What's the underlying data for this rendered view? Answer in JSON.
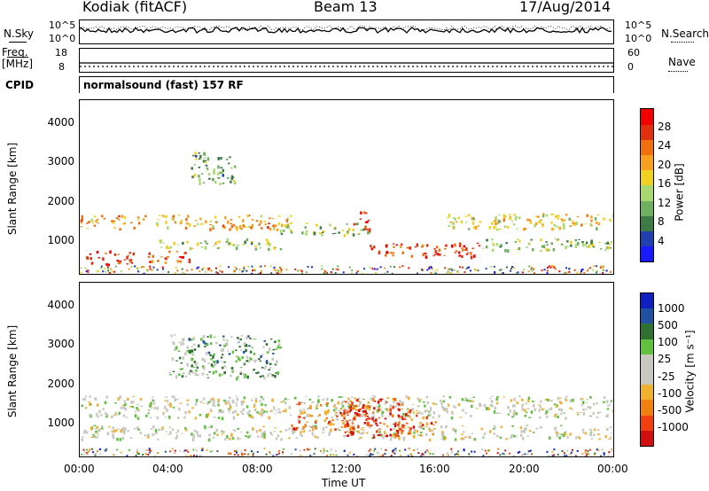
{
  "header": {
    "station": "Kodiak (fitACF)",
    "beam": "Beam 13",
    "date": "17/Aug/2014"
  },
  "left_labels": {
    "nsky": "N.Sky",
    "nsky_top": "10^5",
    "nsky_bottom": "10^0",
    "freq": "Freq.",
    "freq_unit": "[MHz]",
    "freq_top": "18",
    "freq_bottom": "8",
    "cpid": "CPID"
  },
  "right_labels": {
    "nsearch": "N.Search",
    "nsearch_top": "10^5",
    "nsearch_bottom": "10^0",
    "nave": "Nave",
    "nave_top": "60",
    "nave_bottom": "0"
  },
  "cpid_text": "normalsound (fast) 157 RF",
  "x_axis_label": "Time UT",
  "colors": {
    "power_scale": [
      "#1a1aff",
      "#2040b0",
      "#3c7a46",
      "#6fb060",
      "#a8d870",
      "#f0d020",
      "#f8a020",
      "#f07010",
      "#e03010",
      "#f00000"
    ],
    "velocity_scale": [
      "#d01010",
      "#f04010",
      "#f08010",
      "#f0b030",
      "#c8c8c0",
      "#c8c8c0",
      "#60c040",
      "#307030",
      "#2050a0",
      "#1020c0"
    ]
  },
  "chart_data": [
    {
      "type": "heatmap",
      "name": "power",
      "ylabel": "Slant Range [km]",
      "xlabel": "Time UT",
      "x_ticks": [
        "00:00",
        "04:00",
        "08:00",
        "12:00",
        "16:00",
        "20:00",
        "00:00"
      ],
      "y_ticks": [
        "1000",
        "2000",
        "3000",
        "4000"
      ],
      "ylim": [
        200,
        4600
      ],
      "colorbar_label": "Power [dB]",
      "colorbar_ticks": [
        "4",
        "8",
        "12",
        "16",
        "20",
        "24",
        "28"
      ],
      "bands": [
        {
          "t0": 0.0,
          "t1": 9.5,
          "r0": 1350,
          "r1": 1700,
          "level": 0.65
        },
        {
          "t0": 0.2,
          "t1": 2.5,
          "r0": 450,
          "r1": 800,
          "level": 0.9
        },
        {
          "t0": 3.0,
          "t1": 5.0,
          "r0": 500,
          "r1": 800,
          "level": 0.8
        },
        {
          "t0": 3.5,
          "t1": 9.0,
          "r0": 850,
          "r1": 1100,
          "level": 0.45
        },
        {
          "t0": 5.0,
          "t1": 7.0,
          "r0": 2500,
          "r1": 3300,
          "level": 0.35
        },
        {
          "t0": 9.0,
          "t1": 13.0,
          "r0": 1200,
          "r1": 1500,
          "level": 0.4
        },
        {
          "t0": 12.3,
          "t1": 13.0,
          "r0": 1300,
          "r1": 1800,
          "level": 0.85
        },
        {
          "t0": 13.0,
          "t1": 18.0,
          "r0": 650,
          "r1": 1000,
          "level": 0.85
        },
        {
          "t0": 16.5,
          "t1": 24.0,
          "r0": 1350,
          "r1": 1750,
          "level": 0.55
        },
        {
          "t0": 18.0,
          "t1": 24.0,
          "r0": 800,
          "r1": 1100,
          "level": 0.4
        }
      ]
    },
    {
      "type": "heatmap",
      "name": "velocity",
      "ylabel": "Slant Range [km]",
      "xlabel": "Time UT",
      "x_ticks": [
        "00:00",
        "04:00",
        "08:00",
        "12:00",
        "16:00",
        "20:00",
        "00:00"
      ],
      "y_ticks": [
        "1000",
        "2000",
        "3000",
        "4000"
      ],
      "ylim": [
        200,
        4600
      ],
      "colorbar_label": "Velocity [m s⁻¹]",
      "colorbar_ticks": [
        "1000",
        "500",
        "100",
        "25",
        "-25",
        "-100",
        "-500",
        "-1000"
      ],
      "bands": [
        {
          "t0": 0.0,
          "t1": 24.0,
          "r0": 1200,
          "r1": 1750,
          "level": 0.5
        },
        {
          "t0": 0.0,
          "t1": 24.0,
          "r0": 650,
          "r1": 1000,
          "level": 0.5
        },
        {
          "t0": 9.5,
          "t1": 13.0,
          "r0": 900,
          "r1": 1600,
          "level": 0.25
        },
        {
          "t0": 11.8,
          "t1": 14.5,
          "r0": 700,
          "r1": 1700,
          "level": 0.08
        },
        {
          "t0": 14.0,
          "t1": 16.0,
          "r0": 700,
          "r1": 1400,
          "level": 0.25
        },
        {
          "t0": 4.0,
          "t1": 9.0,
          "r0": 2200,
          "r1": 3300,
          "level": 0.65
        }
      ]
    }
  ]
}
